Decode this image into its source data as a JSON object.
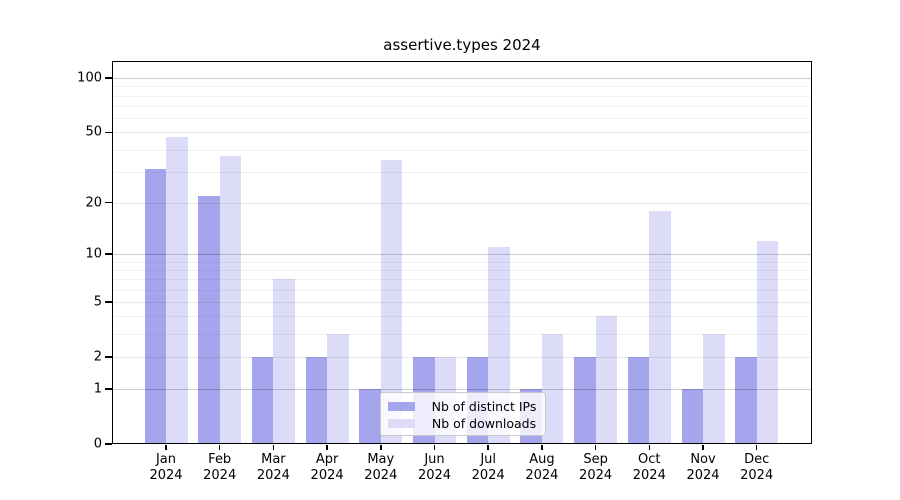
{
  "page_background": "#ffffff",
  "chart_data": {
    "type": "bar",
    "title": "assertive.types 2024",
    "categories": [
      "Jan",
      "Feb",
      "Mar",
      "Apr",
      "May",
      "Jun",
      "Jul",
      "Aug",
      "Sep",
      "Oct",
      "Nov",
      "Dec"
    ],
    "x_year_label": "2024",
    "series": [
      {
        "name": "Nb of distinct IPs",
        "color": "#a5a5ee",
        "values": [
          31,
          22,
          2,
          2,
          1,
          2,
          2,
          1,
          2,
          2,
          1,
          2
        ]
      },
      {
        "name": "Nb of downloads",
        "color": "#dcdcf8",
        "values": [
          47,
          37,
          7,
          3,
          35,
          2,
          11,
          3,
          4,
          18,
          3,
          12
        ]
      }
    ],
    "y_axis": {
      "scale": "log10(1+value)",
      "tick_labels": [
        "100",
        "50",
        "20",
        "10",
        "5",
        "2",
        "1",
        "0"
      ],
      "ticks": [
        100,
        50,
        20,
        10,
        5,
        2,
        1,
        0
      ],
      "major_gridlines": [
        1,
        10,
        100
      ],
      "mid_gridlines": [
        2,
        5,
        20,
        50
      ],
      "minor_gridlines": [
        3,
        4,
        6,
        7,
        8,
        9,
        30,
        40,
        60,
        70,
        80,
        90
      ],
      "top_value": 122
    },
    "grid": true,
    "legend_position": "bottom-center-inside"
  }
}
